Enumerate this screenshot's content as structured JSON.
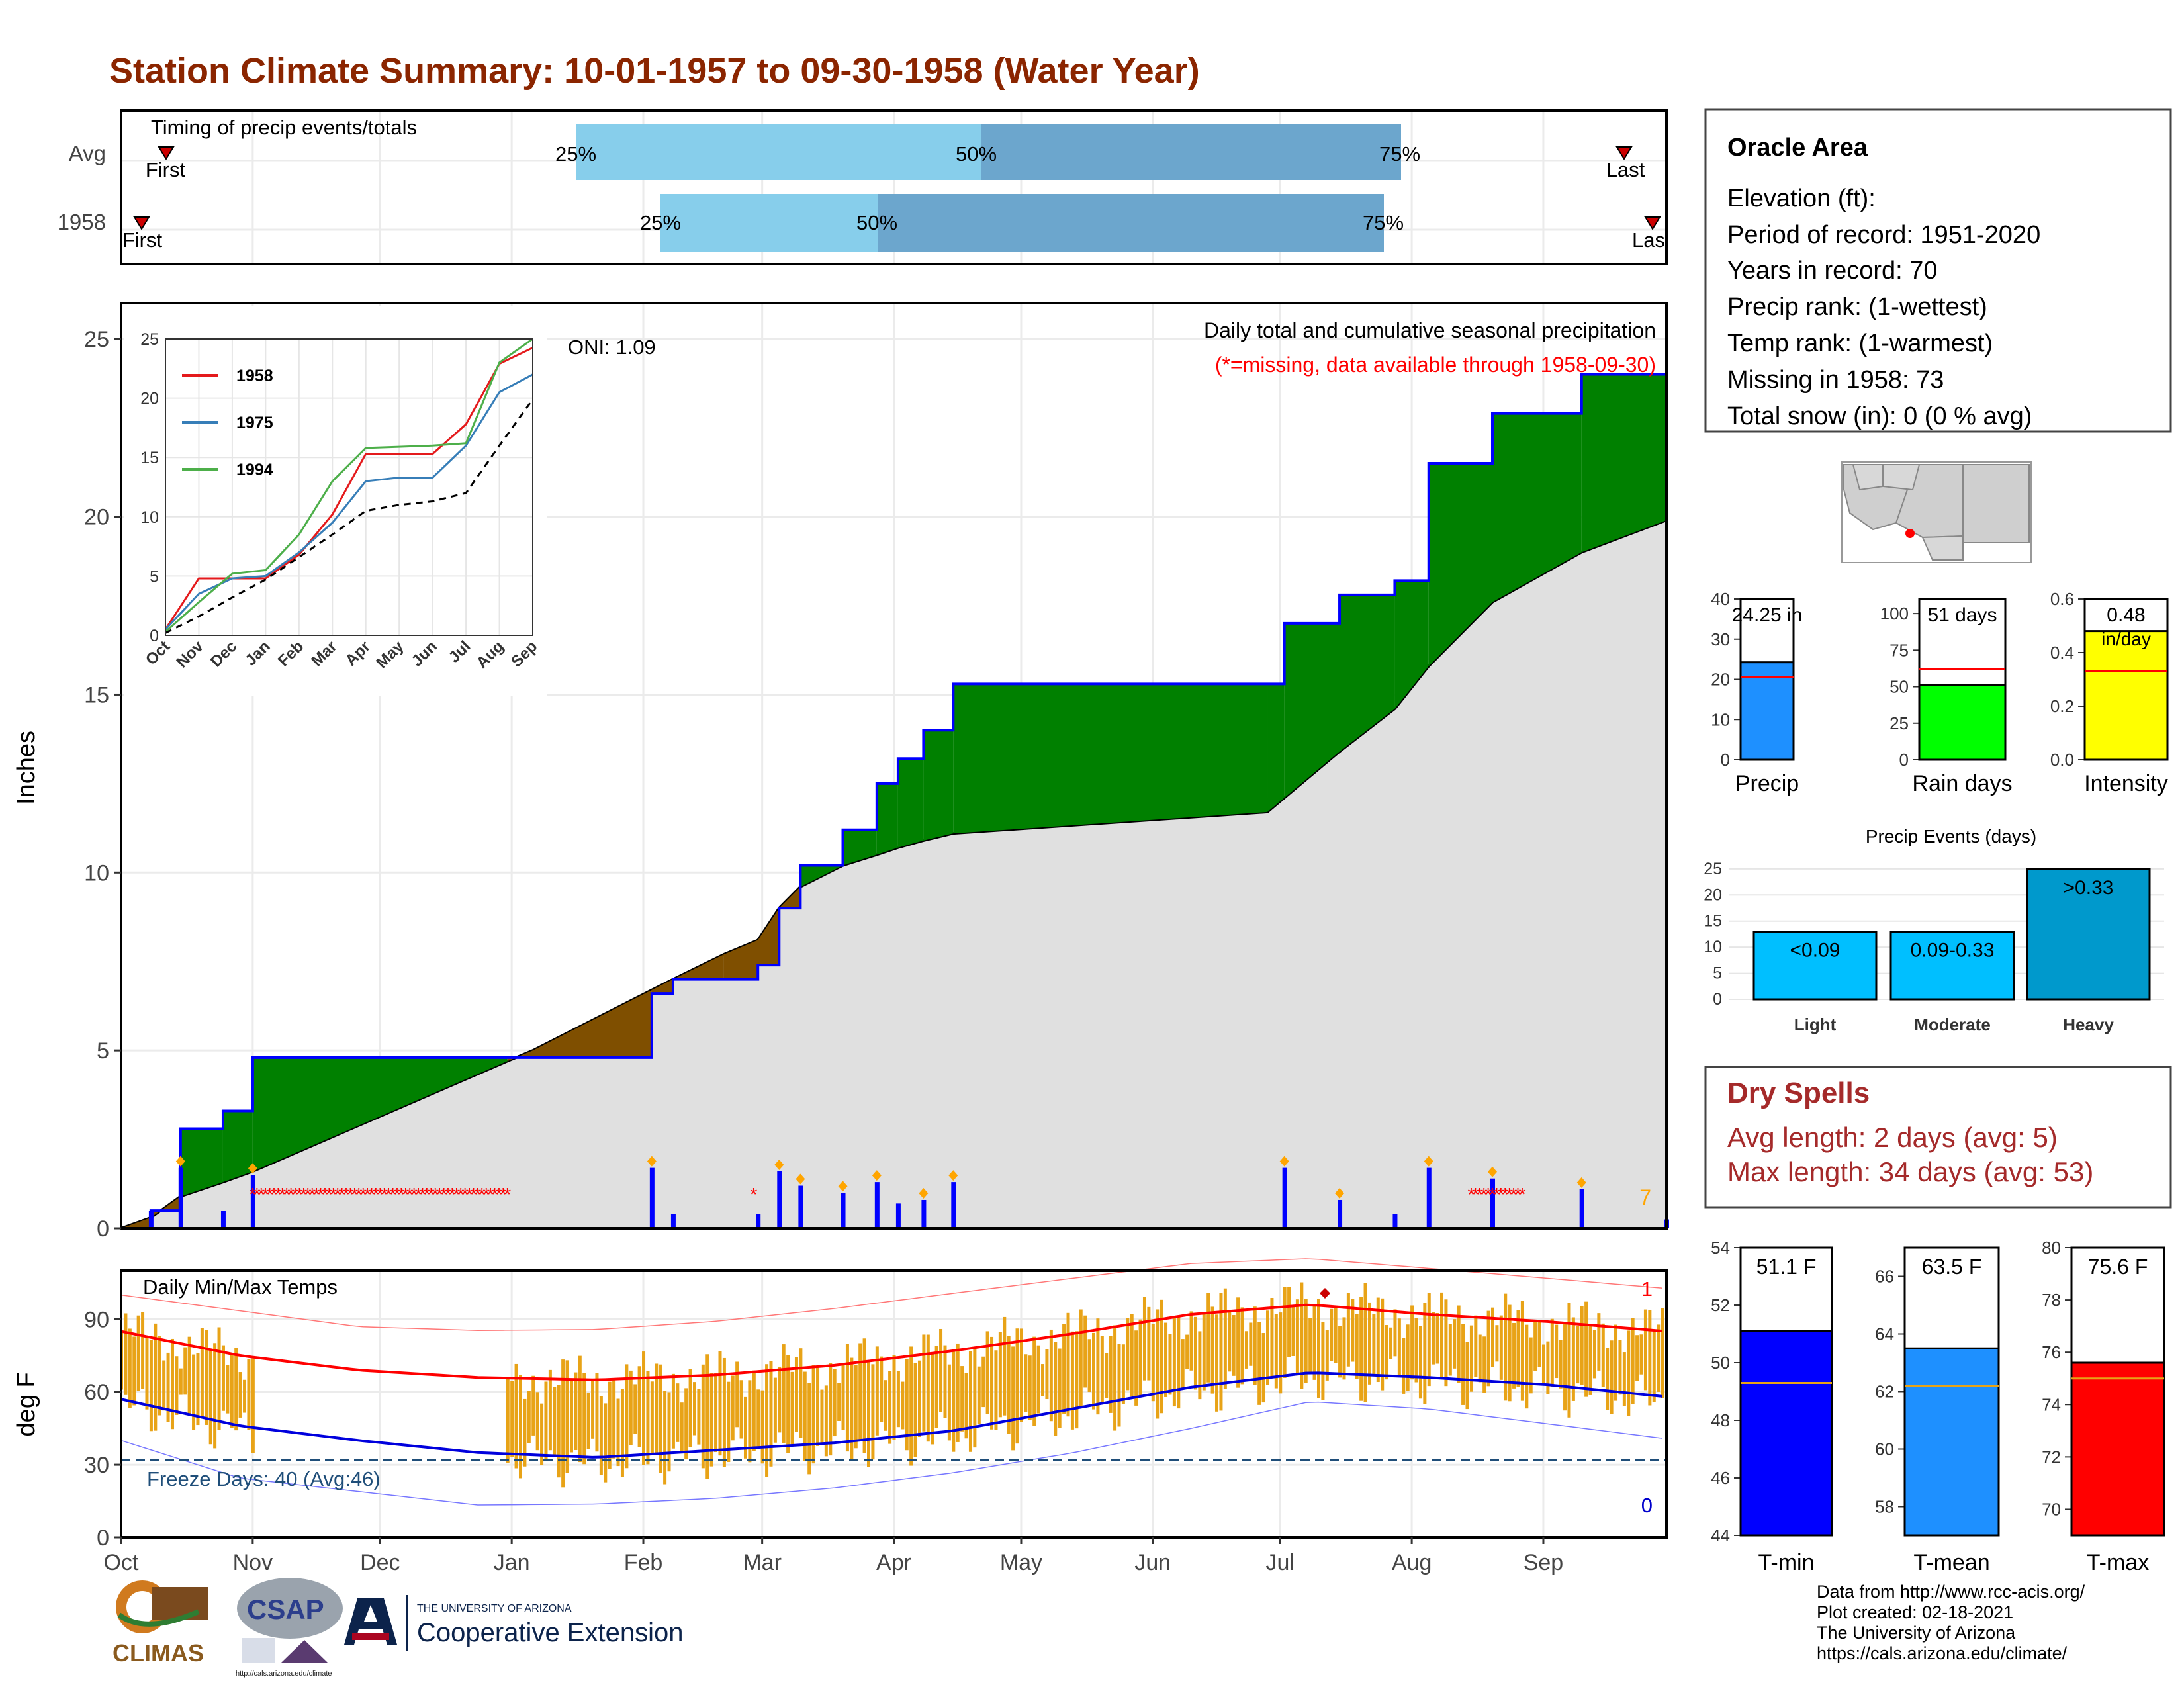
{
  "title": "Station Climate Summary: 10-01-1957 to 09-30-1958 (Water Year)",
  "colors": {
    "title": "#8B2500",
    "accent_red": "#ff0000",
    "surplus": "#008000",
    "deficit": "#7f4f00",
    "normal_fill": "#e0e0e0",
    "precip_bar": "#0000ff",
    "temp_bar": "#e8a317",
    "light_blue": "#87ceeb",
    "mid_blue": "#6ca6cd"
  },
  "timing_panel": {
    "title": "Timing of precip events/totals",
    "rows": [
      {
        "label": "Avg",
        "first_label": "First",
        "last_label": "Last",
        "p25_label": "25%",
        "p50_label": "50%",
        "p75_label": "75%"
      },
      {
        "label": "1958",
        "first_label": "First",
        "last_label": "Last",
        "p25_label": "25%",
        "p50_label": "50%",
        "p75_label": "75%"
      }
    ]
  },
  "precip_panel": {
    "ylabel": "Inches",
    "yticks": [
      "0",
      "5",
      "10",
      "15",
      "20",
      "25"
    ],
    "oni": "ONI: 1.09",
    "subtitle": "Daily total and cumulative seasonal precipitation",
    "missing_note": "(*=missing, data available through 1958-09-30)",
    "corner_count": "7",
    "inset": {
      "yticks": [
        "0",
        "5",
        "10",
        "15",
        "20",
        "25"
      ],
      "xticks": [
        "Oct",
        "Nov",
        "Dec",
        "Jan",
        "Feb",
        "Mar",
        "Apr",
        "May",
        "Jun",
        "Jul",
        "Aug",
        "Sep"
      ],
      "legend": [
        "1958",
        "1975",
        "1994"
      ]
    }
  },
  "temp_panel": {
    "ylabel": "deg F",
    "title": "Daily Min/Max Temps",
    "freeze_text": "Freeze Days: 40 (Avg:46)",
    "record_high_count": "1",
    "record_low_count": "0",
    "yticks": [
      "0",
      "30",
      "60",
      "90"
    ]
  },
  "xaxis": {
    "months": [
      "Oct",
      "Nov",
      "Dec",
      "Jan",
      "Feb",
      "Mar",
      "Apr",
      "May",
      "Jun",
      "Jul",
      "Aug",
      "Sep"
    ]
  },
  "station_box": {
    "name": "Oracle Area",
    "elevation": "Elevation (ft):",
    "period": "Period of record: 1951-2020",
    "years": "Years in record: 70",
    "precip_rank": "Precip rank:  (1-wettest)",
    "temp_rank": "Temp rank:  (1-warmest)",
    "missing": "Missing in 1958: 73",
    "snow": "Total snow (in): 0 (0 % avg)"
  },
  "summary_bars": [
    {
      "label": "Precip",
      "value_label": "24.25 in",
      "yticks": [
        "0",
        "10",
        "20",
        "30",
        "40"
      ]
    },
    {
      "label": "Rain days",
      "value_label": "51 days",
      "yticks": [
        "0",
        "25",
        "50",
        "75",
        "100"
      ]
    },
    {
      "label": "Intensity",
      "value_label": "0.48",
      "unit_label": "in/day",
      "yticks": [
        "0.0",
        "0.2",
        "0.4",
        "0.6"
      ]
    }
  ],
  "precip_events": {
    "title": "Precip Events (days)",
    "yticks": [
      "0",
      "5",
      "10",
      "15",
      "20",
      "25"
    ],
    "bars": [
      {
        "category": "Light",
        "label": "<0.09"
      },
      {
        "category": "Moderate",
        "label": "0.09-0.33"
      },
      {
        "category": "Heavy",
        "label": ">0.33"
      }
    ]
  },
  "dry_spells": {
    "title": "Dry Spells",
    "avg": "Avg length: 2 days (avg: 5)",
    "max": "Max length: 34 days (avg: 53)"
  },
  "temp_bars": [
    {
      "label": "T-min",
      "value_label": "51.1 F",
      "yticks": [
        "44",
        "46",
        "48",
        "50",
        "52",
        "54"
      ]
    },
    {
      "label": "T-mean",
      "value_label": "63.5 F",
      "yticks": [
        "58",
        "60",
        "62",
        "64",
        "66"
      ]
    },
    {
      "label": "T-max",
      "value_label": "75.6 F",
      "yticks": [
        "70",
        "72",
        "74",
        "76",
        "78",
        "80"
      ]
    }
  ],
  "logos": {
    "climas": "CLIMAS",
    "csap": "CSAP",
    "csap_url": "http://cals.arizona.edu/climate",
    "ua_small": "THE UNIVERSITY OF ARIZONA",
    "ua_big": "Cooperative Extension"
  },
  "credits": [
    "Data from http://www.rcc-acis.org/",
    "Plot created: 02-18-2021",
    "The University of Arizona",
    "https://cals.arizona.edu/climate/"
  ],
  "chart_data": [
    {
      "type": "area",
      "name": "cumulative_precip",
      "x": [
        "1957-10-01",
        "1957-10-08",
        "1957-10-15",
        "1957-10-25",
        "1957-11-01",
        "1957-12-31",
        "1958-01-06",
        "1958-02-03",
        "1958-02-08",
        "1958-02-20",
        "1958-02-28",
        "1958-03-05",
        "1958-03-10",
        "1958-03-20",
        "1958-03-28",
        "1958-04-02",
        "1958-04-08",
        "1958-04-15",
        "1958-06-28",
        "1958-07-02",
        "1958-07-15",
        "1958-07-28",
        "1958-08-05",
        "1958-08-20",
        "1958-09-10",
        "1958-09-30"
      ],
      "series": [
        {
          "name": "1958",
          "values": [
            0,
            0.5,
            2.8,
            3.3,
            4.8,
            4.8,
            4.8,
            6.6,
            7.0,
            7.0,
            7.4,
            9.0,
            10.2,
            11.2,
            12.5,
            13.2,
            14.0,
            15.3,
            15.3,
            17.0,
            17.8,
            18.2,
            21.5,
            22.9,
            24.0,
            24.25
          ]
        },
        {
          "name": "Avg",
          "values": [
            0,
            0.3,
            0.9,
            1.3,
            1.6,
            4.7,
            5.0,
            6.7,
            7.0,
            7.7,
            8.1,
            9.0,
            9.6,
            10.2,
            10.5,
            10.7,
            10.9,
            11.1,
            11.7,
            12.1,
            13.4,
            14.6,
            15.8,
            17.6,
            19.0,
            19.9
          ]
        }
      ],
      "ylabel": "Inches",
      "ylim": [
        0,
        26
      ]
    },
    {
      "type": "line",
      "name": "inset_analog_years",
      "categories": [
        "Oct",
        "Nov",
        "Dec",
        "Jan",
        "Feb",
        "Mar",
        "Apr",
        "May",
        "Jun",
        "Jul",
        "Aug",
        "Sep"
      ],
      "series": [
        {
          "name": "1958",
          "values": [
            0.5,
            4.8,
            4.8,
            4.8,
            6.8,
            10.2,
            15.3,
            15.3,
            15.3,
            17.8,
            22.9,
            24.25
          ]
        },
        {
          "name": "1975",
          "values": [
            0.5,
            3.5,
            4.8,
            5.0,
            7.0,
            9.5,
            13.0,
            13.3,
            13.3,
            16.0,
            20.5,
            22.0
          ]
        },
        {
          "name": "1994",
          "values": [
            0.3,
            2.8,
            5.2,
            5.5,
            8.5,
            13.0,
            15.8,
            15.9,
            16.0,
            16.2,
            23.0,
            25.0
          ]
        },
        {
          "name": "Avg",
          "values": [
            0.2,
            1.6,
            3.2,
            4.7,
            6.6,
            8.5,
            10.5,
            11.0,
            11.3,
            12.0,
            16.0,
            19.9
          ]
        }
      ],
      "ylim": [
        0,
        25
      ]
    },
    {
      "type": "bar",
      "name": "precip_events",
      "categories": [
        "Light",
        "Moderate",
        "Heavy"
      ],
      "values": [
        13,
        13,
        25
      ],
      "ylim": [
        0,
        26
      ]
    },
    {
      "type": "bar",
      "name": "summary_bars",
      "categories": [
        "Precip",
        "Rain days",
        "Intensity"
      ],
      "values": [
        24.25,
        51,
        0.48
      ],
      "averages": [
        20.5,
        62,
        0.33
      ],
      "ylims": [
        [
          0,
          40
        ],
        [
          0,
          110
        ],
        [
          0,
          0.6
        ]
      ]
    },
    {
      "type": "bar",
      "name": "temp_bars",
      "categories": [
        "T-min",
        "T-mean",
        "T-max"
      ],
      "values": [
        51.1,
        63.5,
        75.6
      ],
      "averages": [
        49.3,
        62.2,
        75.0
      ],
      "ylims": [
        [
          44,
          54
        ],
        [
          57,
          67
        ],
        [
          69,
          80
        ]
      ]
    },
    {
      "type": "line",
      "name": "daily_temps",
      "series": [
        {
          "name": "avg_max",
          "values": [
            85,
            75,
            69,
            66,
            65,
            67,
            71,
            77,
            84,
            92,
            96,
            92,
            89,
            85
          ]
        },
        {
          "name": "avg_min",
          "values": [
            57,
            46,
            40,
            35,
            33,
            36,
            39,
            44,
            53,
            62,
            68,
            66,
            63,
            58
          ]
        },
        {
          "name": "record_max",
          "values": [
            100,
            93,
            86,
            84,
            84,
            87,
            92,
            98,
            104,
            110,
            112,
            108,
            104,
            100
          ]
        },
        {
          "name": "record_min",
          "values": [
            40,
            24,
            18,
            12,
            12,
            14,
            18,
            24,
            32,
            42,
            53,
            50,
            44,
            38
          ]
        }
      ],
      "ylim": [
        0,
        110
      ],
      "freeze_line": 32
    }
  ]
}
